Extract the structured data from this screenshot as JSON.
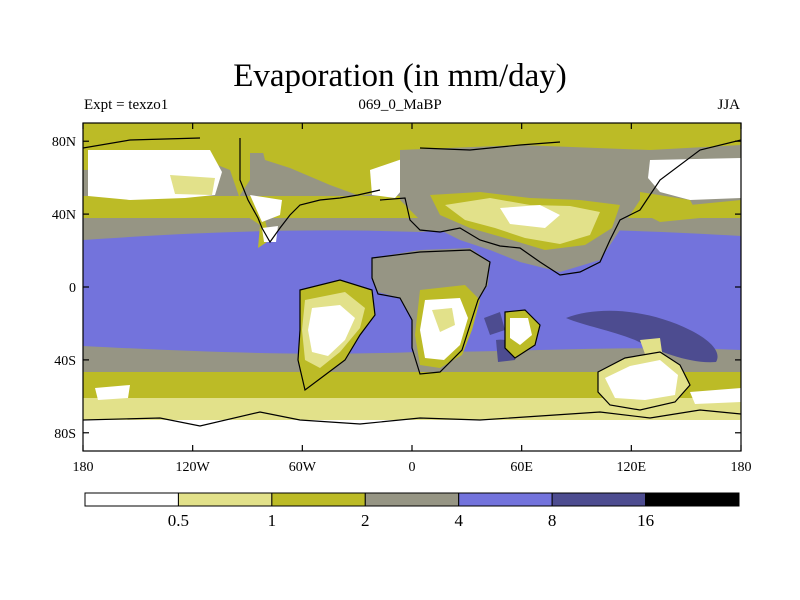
{
  "title": "Evaporation (in mm/day)",
  "subtitle_left": "Expt = texzo1",
  "subtitle_center": "069_0_MaBP",
  "subtitle_right": "JJA",
  "map": {
    "lon_range": [
      -180,
      180
    ],
    "lat_range": [
      -90,
      90
    ],
    "x_ticks": [
      {
        "value": -180,
        "label": "180"
      },
      {
        "value": -120,
        "label": "120W"
      },
      {
        "value": -60,
        "label": "60W"
      },
      {
        "value": 0,
        "label": "0"
      },
      {
        "value": 60,
        "label": "60E"
      },
      {
        "value": 120,
        "label": "120E"
      },
      {
        "value": 180,
        "label": "180"
      }
    ],
    "y_ticks": [
      {
        "value": 80,
        "label": "80N"
      },
      {
        "value": 40,
        "label": "40N"
      },
      {
        "value": 0,
        "label": "0"
      },
      {
        "value": -40,
        "label": "40S"
      },
      {
        "value": -80,
        "label": "80S"
      }
    ]
  },
  "colorbar": {
    "colors": [
      "#ffffff",
      "#e2e18a",
      "#bcbb26",
      "#969584",
      "#7373dc",
      "#4d4c90",
      "#000000"
    ],
    "labels": [
      "0.5",
      "1",
      "2",
      "4",
      "8",
      "16"
    ]
  }
}
